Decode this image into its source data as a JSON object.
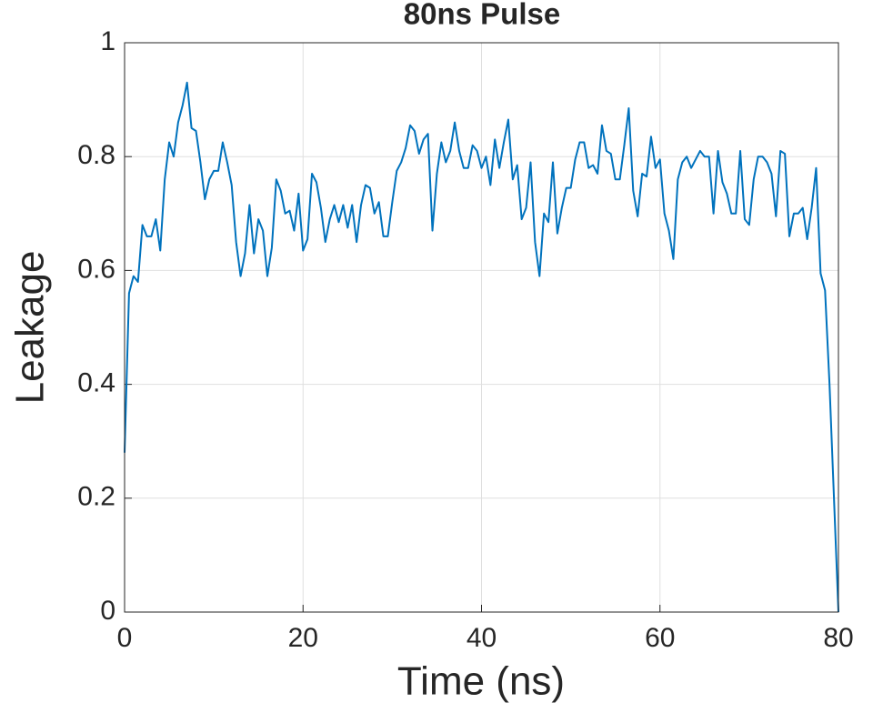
{
  "chart_data": {
    "type": "line",
    "title": "80ns Pulse",
    "xlabel": "Time (ns)",
    "ylabel": "Leakage",
    "xlim": [
      0,
      80
    ],
    "ylim": [
      0,
      1
    ],
    "xticks": [
      0,
      20,
      40,
      60,
      80
    ],
    "yticks": [
      0,
      0.2,
      0.4,
      0.6,
      0.8,
      1
    ],
    "grid": true,
    "x": [
      0,
      0.5,
      1,
      1.5,
      2,
      2.5,
      3,
      3.5,
      4,
      4.5,
      5,
      5.5,
      6,
      6.5,
      7,
      7.5,
      8,
      8.5,
      9,
      9.5,
      10,
      10.5,
      11,
      11.5,
      12,
      12.5,
      13,
      13.5,
      14,
      14.5,
      15,
      15.5,
      16,
      16.5,
      17,
      17.5,
      18,
      18.5,
      19,
      19.5,
      20,
      20.5,
      21,
      21.5,
      22,
      22.5,
      23,
      23.5,
      24,
      24.5,
      25,
      25.5,
      26,
      26.5,
      27,
      27.5,
      28,
      28.5,
      29,
      29.5,
      30,
      30.5,
      31,
      31.5,
      32,
      32.5,
      33,
      33.5,
      34,
      34.5,
      35,
      35.5,
      36,
      36.5,
      37,
      37.5,
      38,
      38.5,
      39,
      39.5,
      40,
      40.5,
      41,
      41.5,
      42,
      42.5,
      43,
      43.5,
      44,
      44.5,
      45,
      45.5,
      46,
      46.5,
      47,
      47.5,
      48,
      48.5,
      49,
      49.5,
      50,
      50.5,
      51,
      51.5,
      52,
      52.5,
      53,
      53.5,
      54,
      54.5,
      55,
      55.5,
      56,
      56.5,
      57,
      57.5,
      58,
      58.5,
      59,
      59.5,
      60,
      60.5,
      61,
      61.5,
      62,
      62.5,
      63,
      63.5,
      64,
      64.5,
      65,
      65.5,
      66,
      66.5,
      67,
      67.5,
      68,
      68.5,
      69,
      69.5,
      70,
      70.5,
      71,
      71.5,
      72,
      72.5,
      73,
      73.5,
      74,
      74.5,
      75,
      75.5,
      76,
      76.5,
      77,
      77.5,
      78,
      78.5,
      79,
      79.5,
      80
    ],
    "series": [
      {
        "name": "Leakage",
        "color": "#0072bd",
        "values": [
          0.28,
          0.56,
          0.59,
          0.58,
          0.68,
          0.66,
          0.66,
          0.69,
          0.635,
          0.76,
          0.825,
          0.8,
          0.86,
          0.89,
          0.93,
          0.85,
          0.845,
          0.79,
          0.725,
          0.76,
          0.775,
          0.775,
          0.825,
          0.79,
          0.75,
          0.65,
          0.59,
          0.63,
          0.715,
          0.63,
          0.69,
          0.67,
          0.59,
          0.64,
          0.76,
          0.74,
          0.7,
          0.705,
          0.67,
          0.735,
          0.635,
          0.655,
          0.77,
          0.755,
          0.71,
          0.65,
          0.69,
          0.715,
          0.685,
          0.715,
          0.675,
          0.715,
          0.65,
          0.715,
          0.75,
          0.745,
          0.7,
          0.72,
          0.66,
          0.66,
          0.72,
          0.775,
          0.79,
          0.815,
          0.855,
          0.845,
          0.805,
          0.83,
          0.84,
          0.67,
          0.77,
          0.825,
          0.79,
          0.81,
          0.86,
          0.81,
          0.78,
          0.78,
          0.82,
          0.81,
          0.78,
          0.8,
          0.75,
          0.83,
          0.78,
          0.825,
          0.865,
          0.76,
          0.785,
          0.69,
          0.71,
          0.79,
          0.65,
          0.59,
          0.7,
          0.685,
          0.79,
          0.665,
          0.71,
          0.745,
          0.745,
          0.795,
          0.825,
          0.825,
          0.78,
          0.785,
          0.77,
          0.855,
          0.81,
          0.805,
          0.76,
          0.76,
          0.82,
          0.885,
          0.74,
          0.695,
          0.77,
          0.765,
          0.835,
          0.78,
          0.795,
          0.7,
          0.67,
          0.62,
          0.76,
          0.79,
          0.8,
          0.78,
          0.795,
          0.81,
          0.8,
          0.8,
          0.7,
          0.81,
          0.755,
          0.735,
          0.7,
          0.7,
          0.81,
          0.69,
          0.68,
          0.76,
          0.8,
          0.8,
          0.79,
          0.77,
          0.695,
          0.81,
          0.805,
          0.66,
          0.7,
          0.7,
          0.71,
          0.655,
          0.71,
          0.78,
          0.595,
          0.565,
          0.4,
          0.2,
          0
        ]
      }
    ]
  }
}
